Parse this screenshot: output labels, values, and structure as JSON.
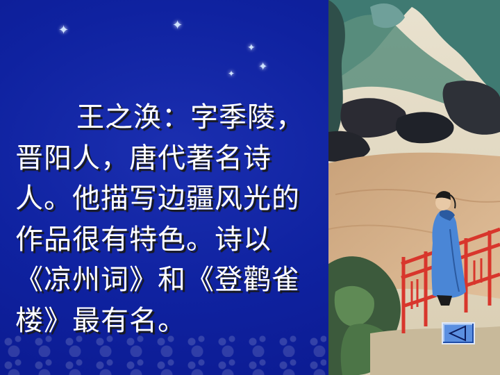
{
  "slide": {
    "text_lines": [
      "王之涣：字季陵，",
      "晋阳人，唐代著名诗",
      "人。他描写边疆风光的",
      "作品很有特色。诗以",
      "《凉州词》和《登鹳雀",
      "楼》最有名。"
    ]
  },
  "illustration": {
    "subject": "scholar in blue robe standing by red railing overlooking misty mountains and river"
  },
  "navigation": {
    "back_icon": "triangle-left-icon"
  },
  "colors": {
    "background": "#0f22a0",
    "text": "#ffffff",
    "nav_button": "#5b8fe0",
    "railing": "#d8362c",
    "robe": "#4a86d6"
  }
}
